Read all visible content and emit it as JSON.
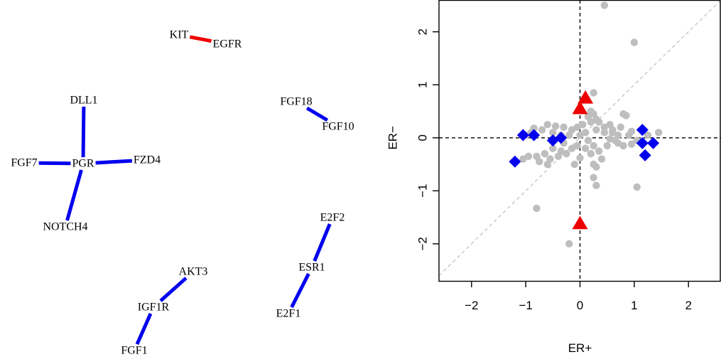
{
  "network": {
    "nodes": [
      {
        "id": "KIT",
        "label": "KIT"
      },
      {
        "id": "EGFR",
        "label": "EGFR"
      },
      {
        "id": "DLL1",
        "label": "DLL1"
      },
      {
        "id": "FGF18",
        "label": "FGF18"
      },
      {
        "id": "FGF10",
        "label": "FGF10"
      },
      {
        "id": "FGF7",
        "label": "FGF7"
      },
      {
        "id": "PGR",
        "label": "PGR"
      },
      {
        "id": "FZD4",
        "label": "FZD4"
      },
      {
        "id": "NOTCH4",
        "label": "NOTCH4"
      },
      {
        "id": "E2F2",
        "label": "E2F2"
      },
      {
        "id": "ESR1",
        "label": "ESR1"
      },
      {
        "id": "E2F1",
        "label": "E2F1"
      },
      {
        "id": "AKT3",
        "label": "AKT3"
      },
      {
        "id": "IGF1R",
        "label": "IGF1R"
      },
      {
        "id": "FGF1",
        "label": "FGF1"
      }
    ],
    "edges": [
      {
        "from": "KIT",
        "to": "EGFR",
        "color": "#ee0000"
      },
      {
        "from": "PGR",
        "to": "DLL1",
        "color": "#0000ee"
      },
      {
        "from": "PGR",
        "to": "FGF7",
        "color": "#0000ee"
      },
      {
        "from": "PGR",
        "to": "FZD4",
        "color": "#0000ee"
      },
      {
        "from": "PGR",
        "to": "NOTCH4",
        "color": "#0000ee"
      },
      {
        "from": "FGF18",
        "to": "FGF10",
        "color": "#0000ee"
      },
      {
        "from": "ESR1",
        "to": "E2F2",
        "color": "#0000ee"
      },
      {
        "from": "ESR1",
        "to": "E2F1",
        "color": "#0000ee"
      },
      {
        "from": "IGF1R",
        "to": "AKT3",
        "color": "#0000ee"
      },
      {
        "from": "IGF1R",
        "to": "FGF1",
        "color": "#0000ee"
      }
    ]
  },
  "chart_data": {
    "type": "scatter",
    "xlabel": "ER+",
    "ylabel": "ER−",
    "xlim": [
      -2.6,
      2.6
    ],
    "ylim": [
      -2.7,
      2.6
    ],
    "xticks": [
      {
        "value": -2,
        "label": "−2"
      },
      {
        "value": -1,
        "label": "−1"
      },
      {
        "value": 0,
        "label": "0"
      },
      {
        "value": 1,
        "label": "1"
      },
      {
        "value": 2,
        "label": "2"
      }
    ],
    "yticks": [
      {
        "value": -2,
        "label": "−2"
      },
      {
        "value": -1,
        "label": "−1"
      },
      {
        "value": 0,
        "label": "0"
      },
      {
        "value": 1,
        "label": "1"
      },
      {
        "value": 2,
        "label": "2"
      }
    ],
    "reference_lines": [
      {
        "type": "vline",
        "value": 0,
        "style": "dashed",
        "color": "#000000"
      },
      {
        "type": "hline",
        "value": 0,
        "style": "dashed",
        "color": "#000000"
      },
      {
        "type": "diagonal",
        "slope": 1,
        "intercept": 0,
        "style": "dashed",
        "color": "#bebebe"
      }
    ],
    "series": [
      {
        "marker": "circle",
        "color": "#bebebe",
        "points": [
          [
            0.45,
            2.5
          ],
          [
            1.0,
            1.8
          ],
          [
            -0.8,
            -1.33
          ],
          [
            -0.2,
            -2.0
          ],
          [
            1.05,
            -0.93
          ],
          [
            0.25,
            0.85
          ],
          [
            0.2,
            0.5
          ],
          [
            0.25,
            0.45
          ],
          [
            0.15,
            0.4
          ],
          [
            0.3,
            0.35
          ],
          [
            0.35,
            0.3
          ],
          [
            0.55,
            0.25
          ],
          [
            0.8,
            0.45
          ],
          [
            0.85,
            0.42
          ],
          [
            0.75,
            0.2
          ],
          [
            0.45,
            0.2
          ],
          [
            0.3,
            0.15
          ],
          [
            0.6,
            0.1
          ],
          [
            0.7,
            0.05
          ],
          [
            0.55,
            -0.02
          ],
          [
            0.45,
            0.1
          ],
          [
            0.1,
            0.1
          ],
          [
            0.05,
            0.25
          ],
          [
            -0.05,
            0.2
          ],
          [
            -0.15,
            0.15
          ],
          [
            -0.3,
            0.2
          ],
          [
            -0.45,
            0.22
          ],
          [
            -0.6,
            0.25
          ],
          [
            -0.7,
            0.15
          ],
          [
            -0.85,
            0.18
          ],
          [
            -1.0,
            0.05
          ],
          [
            -0.9,
            0.1
          ],
          [
            -0.5,
            0.1
          ],
          [
            -0.35,
            0.05
          ],
          [
            -0.2,
            0.05
          ],
          [
            0.0,
            0.05
          ],
          [
            0.15,
            -0.05
          ],
          [
            0.25,
            -0.15
          ],
          [
            0.35,
            -0.25
          ],
          [
            0.4,
            -0.4
          ],
          [
            0.2,
            -0.3
          ],
          [
            0.25,
            -0.5
          ],
          [
            0.3,
            -0.55
          ],
          [
            0.25,
            -0.75
          ],
          [
            0.3,
            -0.9
          ],
          [
            0.1,
            -0.2
          ],
          [
            -0.05,
            -0.15
          ],
          [
            -0.15,
            -0.2
          ],
          [
            -0.25,
            -0.3
          ],
          [
            -0.35,
            -0.25
          ],
          [
            -0.4,
            -0.35
          ],
          [
            -0.55,
            -0.4
          ],
          [
            -0.65,
            -0.3
          ],
          [
            -0.75,
            -0.45
          ],
          [
            -0.8,
            -0.35
          ],
          [
            -0.95,
            -0.35
          ],
          [
            -1.05,
            -0.4
          ],
          [
            -0.6,
            -0.5
          ],
          [
            -0.5,
            -0.2
          ],
          [
            -0.3,
            -0.1
          ],
          [
            -0.1,
            -0.5
          ],
          [
            0.0,
            -0.38
          ],
          [
            0.7,
            -0.1
          ],
          [
            0.8,
            -0.15
          ],
          [
            0.95,
            -0.12
          ],
          [
            1.05,
            -0.05
          ],
          [
            1.25,
            0.05
          ],
          [
            1.45,
            0.1
          ],
          [
            0.95,
            0.12
          ],
          [
            0.65,
            -0.05
          ],
          [
            0.5,
            -0.15
          ],
          [
            0.6,
            0.15
          ],
          [
            0.9,
            0.05
          ],
          [
            0.2,
            0.3
          ]
        ]
      },
      {
        "marker": "diamond",
        "color": "#0000ee",
        "points": [
          [
            -1.2,
            -0.45
          ],
          [
            -1.05,
            0.05
          ],
          [
            -0.85,
            0.05
          ],
          [
            -0.5,
            -0.05
          ],
          [
            -0.35,
            0.0
          ],
          [
            1.15,
            0.15
          ],
          [
            1.15,
            -0.1
          ],
          [
            1.35,
            -0.1
          ],
          [
            1.2,
            -0.33
          ]
        ]
      },
      {
        "marker": "triangle",
        "color": "#ee0000",
        "points": [
          [
            0.0,
            0.55
          ],
          [
            0.1,
            0.75
          ],
          [
            0.0,
            -1.62
          ]
        ]
      }
    ]
  }
}
